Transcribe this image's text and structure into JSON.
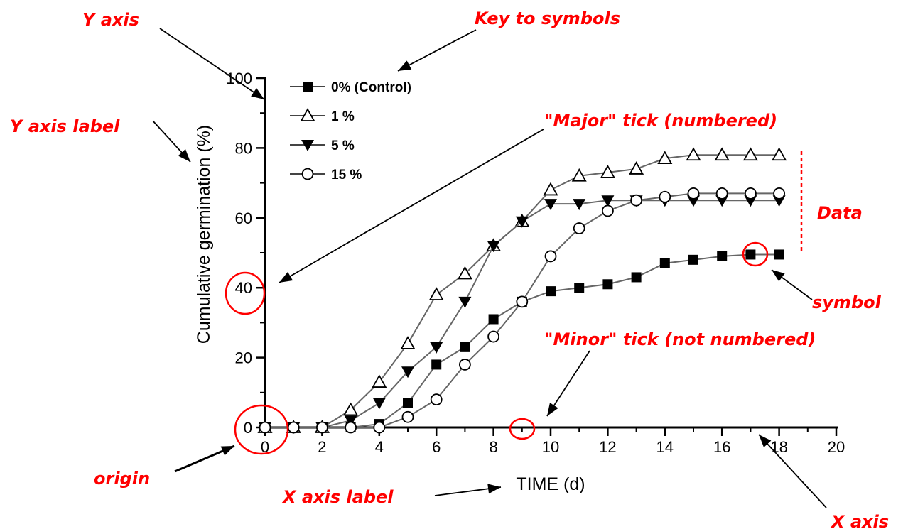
{
  "chart_data": {
    "type": "line",
    "xlabel": "TIME (d)",
    "ylabel": "Cumulative germination (%)",
    "xlim": [
      0,
      20
    ],
    "ylim": [
      0,
      100
    ],
    "x_major_ticks": [
      0,
      2,
      4,
      6,
      8,
      10,
      12,
      14,
      16,
      18,
      20
    ],
    "x_minor_ticks": [
      1,
      3,
      5,
      7,
      9,
      11,
      13,
      15,
      17,
      19
    ],
    "y_major_ticks": [
      0,
      20,
      40,
      60,
      80,
      100
    ],
    "y_minor_ticks": [
      10,
      30,
      50,
      70,
      90
    ],
    "grid": false,
    "legend_position": "top-left",
    "x": [
      0,
      1,
      2,
      3,
      4,
      5,
      6,
      7,
      8,
      9,
      10,
      11,
      12,
      13,
      14,
      15,
      16,
      17,
      18
    ],
    "series": [
      {
        "name": "0% (Control)",
        "marker": "filled-square",
        "values": [
          0,
          0,
          0,
          0,
          1,
          7,
          18,
          23,
          31,
          36,
          39,
          40,
          41,
          43,
          47,
          48,
          49,
          49.5,
          49.5
        ]
      },
      {
        "name": "1 %",
        "marker": "open-triangle-up",
        "values": [
          0,
          0,
          0,
          5,
          13,
          24,
          38,
          44,
          52,
          59,
          68,
          72,
          73,
          74,
          77,
          78,
          78,
          78,
          78
        ]
      },
      {
        "name": "5 %",
        "marker": "filled-triangle-down",
        "values": [
          0,
          0,
          0,
          2,
          7,
          16,
          23,
          36,
          52,
          59,
          64,
          64,
          65,
          65,
          65,
          65,
          65,
          65,
          65
        ]
      },
      {
        "name": "15 %",
        "marker": "open-circle",
        "values": [
          0,
          0,
          0,
          0,
          0,
          3,
          8,
          18,
          26,
          36,
          49,
          57,
          62,
          65,
          66,
          67,
          67,
          67,
          67
        ]
      }
    ]
  },
  "annotations": {
    "y_axis": "Y axis",
    "key": "Key to symbols",
    "y_axis_label": "Y axis label",
    "major_tick": "\"Major\" tick (numbered)",
    "data": "Data",
    "symbol": "symbol",
    "minor_tick": "\"Minor\" tick (not numbered)",
    "origin": "origin",
    "x_axis_label": "X axis label",
    "x_axis": "X axis"
  },
  "colors": {
    "annotation": "#ff0000",
    "plot": "#000000",
    "line": "#666666"
  }
}
